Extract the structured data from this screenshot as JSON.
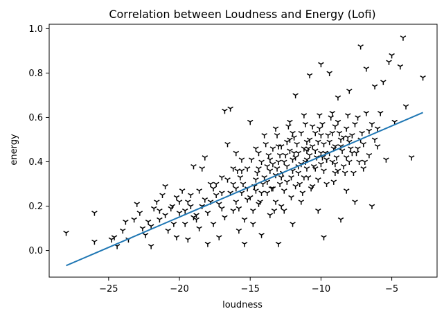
{
  "chart_data": {
    "type": "scatter",
    "title": "Correlation between Loudness and Energy (Lofi)",
    "xlabel": "loudness",
    "ylabel": "energy",
    "xlim": [
      -29.2,
      -1.8
    ],
    "ylim": [
      -0.12,
      1.02
    ],
    "xticks": [
      -25,
      -20,
      -15,
      -10,
      -5
    ],
    "yticks": [
      0.0,
      0.2,
      0.4,
      0.6,
      0.8,
      1.0
    ],
    "xtick_labels": [
      "−25",
      "−20",
      "−15",
      "−10",
      "−5"
    ],
    "ytick_labels": [
      "0.0",
      "0.2",
      "0.4",
      "0.6",
      "0.8",
      "1.0"
    ],
    "grid": false,
    "marker": "tri_down",
    "marker_color": "#000000",
    "fit_line": {
      "x": [
        -28.0,
        -2.8
      ],
      "y": [
        -0.068,
        0.622
      ],
      "color": "#1f77b4"
    },
    "points": [
      [
        -28.0,
        0.08
      ],
      [
        -26.0,
        0.17
      ],
      [
        -26.0,
        0.04
      ],
      [
        -24.8,
        0.05
      ],
      [
        -24.6,
        0.06
      ],
      [
        -24.4,
        0.02
      ],
      [
        -24.0,
        0.09
      ],
      [
        -23.8,
        0.13
      ],
      [
        -23.6,
        0.05
      ],
      [
        -23.2,
        0.14
      ],
      [
        -23.0,
        0.21
      ],
      [
        -22.8,
        0.17
      ],
      [
        -22.6,
        0.1
      ],
      [
        -22.4,
        0.07
      ],
      [
        -22.2,
        0.13
      ],
      [
        -22.0,
        0.02
      ],
      [
        -21.8,
        0.19
      ],
      [
        -21.6,
        0.22
      ],
      [
        -21.4,
        0.14
      ],
      [
        -21.2,
        0.25
      ],
      [
        -21.0,
        0.29
      ],
      [
        -20.8,
        0.09
      ],
      [
        -20.6,
        0.19
      ],
      [
        -20.4,
        0.12
      ],
      [
        -20.2,
        0.06
      ],
      [
        -20.0,
        0.22
      ],
      [
        -19.8,
        0.27
      ],
      [
        -19.6,
        0.18
      ],
      [
        -19.4,
        0.05
      ],
      [
        -19.2,
        0.25
      ],
      [
        -19.0,
        0.38
      ],
      [
        -18.8,
        0.14
      ],
      [
        -18.6,
        0.27
      ],
      [
        -18.4,
        0.37
      ],
      [
        -18.2,
        0.42
      ],
      [
        -18.0,
        0.03
      ],
      [
        -17.8,
        0.22
      ],
      [
        -17.6,
        0.12
      ],
      [
        -17.4,
        0.3
      ],
      [
        -17.2,
        0.06
      ],
      [
        -17.0,
        0.33
      ],
      [
        -16.8,
        0.63
      ],
      [
        -16.6,
        0.48
      ],
      [
        -16.4,
        0.64
      ],
      [
        -16.2,
        0.18
      ],
      [
        -16.0,
        0.44
      ],
      [
        -15.8,
        0.09
      ],
      [
        -15.6,
        0.36
      ],
      [
        -15.4,
        0.03
      ],
      [
        -15.2,
        0.28
      ],
      [
        -15.0,
        0.58
      ],
      [
        -14.8,
        0.12
      ],
      [
        -14.6,
        0.46
      ],
      [
        -14.4,
        0.21
      ],
      [
        -14.2,
        0.07
      ],
      [
        -14.0,
        0.52
      ],
      [
        -13.8,
        0.26
      ],
      [
        -13.6,
        0.16
      ],
      [
        -13.4,
        0.39
      ],
      [
        -13.2,
        0.55
      ],
      [
        -13.0,
        0.03
      ],
      [
        -12.8,
        0.33
      ],
      [
        -12.6,
        0.18
      ],
      [
        -12.4,
        0.49
      ],
      [
        -12.2,
        0.58
      ],
      [
        -12.0,
        0.12
      ],
      [
        -11.8,
        0.7
      ],
      [
        -11.6,
        0.38
      ],
      [
        -11.4,
        0.22
      ],
      [
        -11.2,
        0.61
      ],
      [
        -11.0,
        0.45
      ],
      [
        -10.8,
        0.79
      ],
      [
        -10.6,
        0.29
      ],
      [
        -10.4,
        0.53
      ],
      [
        -10.2,
        0.18
      ],
      [
        -10.0,
        0.84
      ],
      [
        -9.8,
        0.06
      ],
      [
        -9.6,
        0.41
      ],
      [
        -9.4,
        0.8
      ],
      [
        -9.2,
        0.62
      ],
      [
        -9.0,
        0.35
      ],
      [
        -8.8,
        0.69
      ],
      [
        -8.6,
        0.14
      ],
      [
        -8.4,
        0.51
      ],
      [
        -8.2,
        0.27
      ],
      [
        -8.0,
        0.72
      ],
      [
        -7.8,
        0.44
      ],
      [
        -7.6,
        0.22
      ],
      [
        -7.4,
        0.6
      ],
      [
        -7.2,
        0.92
      ],
      [
        -7.0,
        0.37
      ],
      [
        -6.8,
        0.82
      ],
      [
        -6.6,
        0.54
      ],
      [
        -6.4,
        0.2
      ],
      [
        -6.2,
        0.74
      ],
      [
        -6.0,
        0.47
      ],
      [
        -5.8,
        0.62
      ],
      [
        -5.6,
        0.76
      ],
      [
        -5.4,
        0.41
      ],
      [
        -5.2,
        0.85
      ],
      [
        -5.0,
        0.88
      ],
      [
        -4.8,
        0.58
      ],
      [
        -4.4,
        0.83
      ],
      [
        -4.2,
        0.96
      ],
      [
        -4.0,
        0.65
      ],
      [
        -3.6,
        0.42
      ],
      [
        -2.8,
        0.78
      ],
      [
        -13.0,
        0.4
      ],
      [
        -12.0,
        0.36
      ],
      [
        -11.0,
        0.41
      ],
      [
        -10.0,
        0.44
      ],
      [
        -9.0,
        0.47
      ],
      [
        -14.0,
        0.33
      ],
      [
        -12.5,
        0.43
      ],
      [
        -11.5,
        0.3
      ],
      [
        -10.5,
        0.38
      ],
      [
        -9.5,
        0.52
      ],
      [
        -8.5,
        0.45
      ],
      [
        -13.5,
        0.28
      ],
      [
        -12.2,
        0.5
      ],
      [
        -11.2,
        0.46
      ],
      [
        -10.2,
        0.32
      ],
      [
        -9.2,
        0.4
      ],
      [
        -8.2,
        0.55
      ],
      [
        -15.0,
        0.24
      ],
      [
        -14.5,
        0.35
      ],
      [
        -13.2,
        0.22
      ],
      [
        -12.8,
        0.47
      ],
      [
        -11.8,
        0.42
      ],
      [
        -10.8,
        0.5
      ],
      [
        -9.8,
        0.36
      ],
      [
        -8.8,
        0.58
      ],
      [
        -16.0,
        0.22
      ],
      [
        -15.5,
        0.3
      ],
      [
        -14.2,
        0.4
      ],
      [
        -13.8,
        0.31
      ],
      [
        -12.4,
        0.38
      ],
      [
        -11.4,
        0.53
      ],
      [
        -10.4,
        0.45
      ],
      [
        -9.4,
        0.49
      ],
      [
        -8.4,
        0.38
      ],
      [
        -7.8,
        0.52
      ],
      [
        -17.0,
        0.19
      ],
      [
        -16.4,
        0.26
      ],
      [
        -15.2,
        0.37
      ],
      [
        -14.8,
        0.18
      ],
      [
        -13.4,
        0.46
      ],
      [
        -12.6,
        0.27
      ],
      [
        -11.6,
        0.35
      ],
      [
        -10.6,
        0.56
      ],
      [
        -9.6,
        0.3
      ],
      [
        -8.6,
        0.5
      ],
      [
        -7.6,
        0.57
      ],
      [
        -7.0,
        0.48
      ],
      [
        -6.6,
        0.43
      ],
      [
        -18.0,
        0.17
      ],
      [
        -17.4,
        0.25
      ],
      [
        -16.6,
        0.32
      ],
      [
        -15.8,
        0.19
      ],
      [
        -14.6,
        0.27
      ],
      [
        -13.6,
        0.36
      ],
      [
        -12.9,
        0.3
      ],
      [
        -11.9,
        0.44
      ],
      [
        -10.9,
        0.33
      ],
      [
        -9.9,
        0.57
      ],
      [
        -8.9,
        0.42
      ],
      [
        -7.9,
        0.46
      ],
      [
        -19.0,
        0.15
      ],
      [
        -18.4,
        0.2
      ],
      [
        -17.6,
        0.28
      ],
      [
        -16.8,
        0.15
      ],
      [
        -15.6,
        0.41
      ],
      [
        -14.4,
        0.44
      ],
      [
        -13.1,
        0.52
      ],
      [
        -12.1,
        0.24
      ],
      [
        -11.1,
        0.57
      ],
      [
        -10.1,
        0.61
      ],
      [
        -9.1,
        0.31
      ],
      [
        -8.1,
        0.61
      ],
      [
        -7.1,
        0.53
      ],
      [
        -6.2,
        0.5
      ],
      [
        -20.0,
        0.17
      ],
      [
        -19.4,
        0.22
      ],
      [
        -18.6,
        0.1
      ],
      [
        -17.8,
        0.3
      ],
      [
        -16.2,
        0.37
      ],
      [
        -15.4,
        0.14
      ],
      [
        -14.1,
        0.3
      ],
      [
        -13.3,
        0.18
      ],
      [
        -12.3,
        0.56
      ],
      [
        -11.3,
        0.26
      ],
      [
        -10.3,
        0.42
      ],
      [
        -9.3,
        0.6
      ],
      [
        -8.3,
        0.35
      ],
      [
        -7.3,
        0.4
      ],
      [
        -6.4,
        0.57
      ],
      [
        -21.0,
        0.16
      ],
      [
        -20.5,
        0.2
      ],
      [
        -19.6,
        0.12
      ],
      [
        -18.2,
        0.23
      ],
      [
        -17.2,
        0.21
      ],
      [
        -16.0,
        0.28
      ],
      [
        -14.9,
        0.41
      ],
      [
        -13.7,
        0.43
      ],
      [
        -12.7,
        0.35
      ],
      [
        -11.7,
        0.48
      ],
      [
        -10.7,
        0.28
      ],
      [
        -9.7,
        0.44
      ],
      [
        -8.7,
        0.53
      ],
      [
        -7.7,
        0.35
      ],
      [
        -6.8,
        0.62
      ],
      [
        -22.0,
        0.11
      ],
      [
        -21.4,
        0.18
      ],
      [
        -20.2,
        0.24
      ],
      [
        -19.2,
        0.2
      ],
      [
        -18.8,
        0.16
      ],
      [
        -17.0,
        0.26
      ],
      [
        -15.7,
        0.33
      ],
      [
        -14.3,
        0.22
      ],
      [
        -13.9,
        0.48
      ],
      [
        -12.0,
        0.41
      ],
      [
        -11.0,
        0.37
      ],
      [
        -10.0,
        0.52
      ],
      [
        -9.0,
        0.39
      ],
      [
        -8.0,
        0.49
      ],
      [
        -7.4,
        0.46
      ],
      [
        -6.0,
        0.55
      ],
      [
        -13.2,
        0.34
      ],
      [
        -12.6,
        0.4
      ],
      [
        -11.4,
        0.39
      ],
      [
        -10.6,
        0.47
      ],
      [
        -9.6,
        0.41
      ],
      [
        -14.2,
        0.26
      ],
      [
        -13.6,
        0.41
      ],
      [
        -12.4,
        0.31
      ],
      [
        -11.6,
        0.44
      ],
      [
        -10.4,
        0.37
      ],
      [
        -9.4,
        0.44
      ],
      [
        -8.6,
        0.47
      ],
      [
        -15.2,
        0.23
      ],
      [
        -14.6,
        0.32
      ],
      [
        -13.4,
        0.28
      ],
      [
        -12.2,
        0.45
      ],
      [
        -11.2,
        0.33
      ],
      [
        -10.2,
        0.49
      ],
      [
        -9.2,
        0.53
      ],
      [
        -8.2,
        0.42
      ],
      [
        -16.2,
        0.3
      ],
      [
        -15.6,
        0.26
      ],
      [
        -14.4,
        0.37
      ],
      [
        -13.0,
        0.47
      ],
      [
        -12.0,
        0.53
      ],
      [
        -11.0,
        0.49
      ],
      [
        -10.0,
        0.39
      ],
      [
        -9.0,
        0.56
      ],
      [
        -8.0,
        0.4
      ],
      [
        -7.2,
        0.5
      ],
      [
        -12.8,
        0.2
      ],
      [
        -11.8,
        0.29
      ],
      [
        -10.8,
        0.43
      ],
      [
        -9.8,
        0.48
      ],
      [
        -8.8,
        0.36
      ],
      [
        -13.8,
        0.38
      ],
      [
        -12.9,
        0.43
      ],
      [
        -11.9,
        0.51
      ],
      [
        -10.9,
        0.46
      ],
      [
        -9.9,
        0.42
      ],
      [
        -14.7,
        0.29
      ],
      [
        -13.1,
        0.37
      ],
      [
        -12.1,
        0.33
      ],
      [
        -11.1,
        0.4
      ],
      [
        -10.1,
        0.55
      ],
      [
        -9.1,
        0.46
      ],
      [
        -8.1,
        0.51
      ],
      [
        -7.5,
        0.44
      ],
      [
        -6.9,
        0.4
      ],
      [
        -15.9,
        0.36
      ]
    ]
  }
}
